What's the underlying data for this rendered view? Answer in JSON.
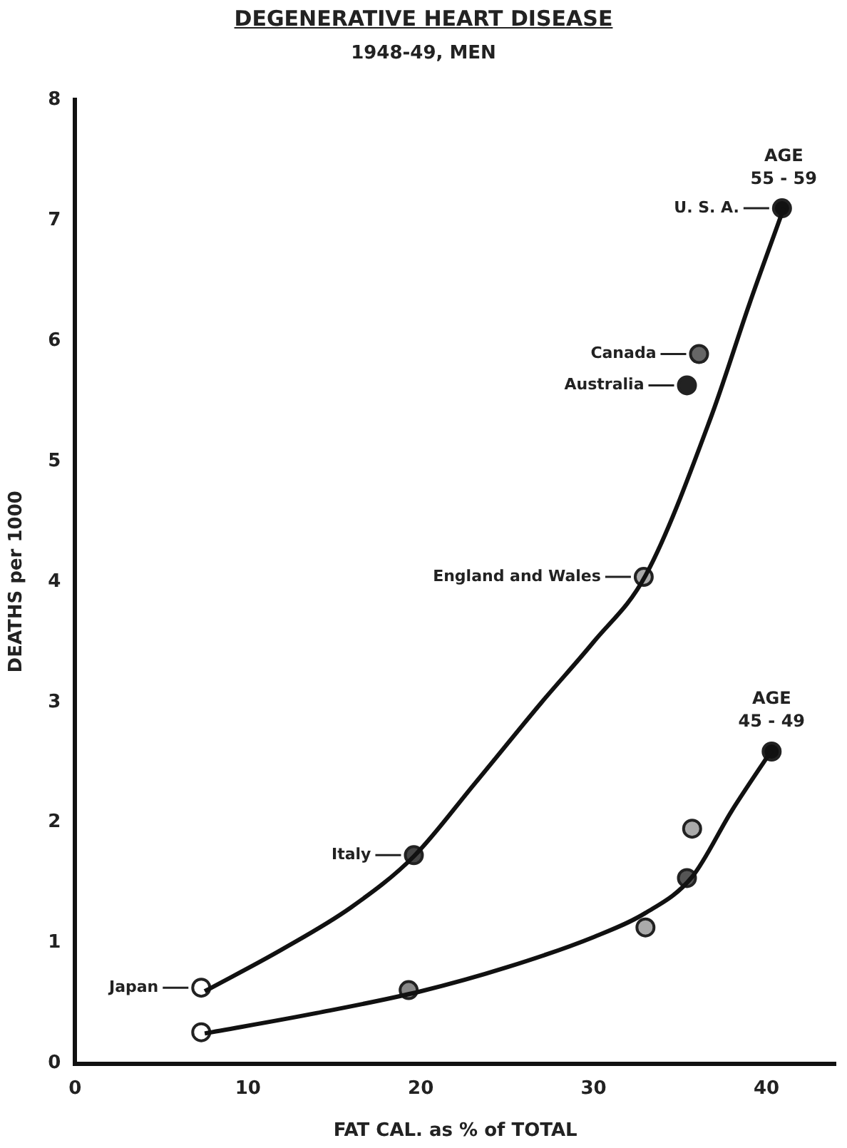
{
  "chart_data": {
    "type": "scatter",
    "title": "DEGENERATIVE HEART DISEASE",
    "subtitle": "1948-49, MEN",
    "xlabel": "FAT CAL. as % of TOTAL",
    "ylabel": "DEATHS per 1000",
    "xlim": [
      0,
      44
    ],
    "xticks": [
      0,
      10,
      20,
      30,
      40
    ],
    "ylim": [
      0,
      8
    ],
    "yticks": [
      0,
      1,
      2,
      3,
      4,
      5,
      6,
      7,
      8
    ],
    "grid": false,
    "legend": false,
    "marker": "circle",
    "series": [
      {
        "type": "line",
        "name": "AGE 55 - 59",
        "color": "#111111",
        "x": [
          7.5,
          12,
          16,
          19.6,
          23.1,
          27,
          30,
          33,
          36.8,
          39,
          41
        ],
        "values": [
          0.6,
          0.95,
          1.3,
          1.72,
          2.32,
          3.0,
          3.5,
          4.05,
          5.37,
          6.3,
          7.1
        ],
        "marker": "none",
        "line_style": "solid"
      },
      {
        "type": "line",
        "name": "AGE 45 - 49",
        "color": "#111111",
        "x": [
          7.5,
          14,
          20,
          25,
          30,
          33,
          35.7,
          38,
          40.3
        ],
        "values": [
          0.25,
          0.42,
          0.6,
          0.8,
          1.05,
          1.25,
          1.55,
          2.1,
          2.6
        ],
        "marker": "none",
        "line_style": "solid"
      },
      {
        "color": "#222222",
        "colors": [
          "#ffffff",
          "#444444",
          "#aaaaaa",
          "#222222",
          "#666666",
          "#111111"
        ],
        "x": [
          7.3,
          19.6,
          32.9,
          35.4,
          36.1,
          40.9
        ],
        "values": [
          0.63,
          1.73,
          4.04,
          5.63,
          5.89,
          7.1
        ]
      },
      {
        "color": "#222222",
        "colors": [
          "#ffffff",
          "#888888",
          "#aaaaaa",
          "#555555",
          "#aaaaaa",
          "#111111"
        ],
        "x": [
          7.3,
          19.3,
          33.0,
          35.4,
          35.7,
          40.3
        ],
        "values": [
          0.26,
          0.61,
          1.13,
          1.54,
          1.95,
          2.59
        ]
      }
    ],
    "annotations": [
      {
        "text": "Japan",
        "x": 7.3,
        "y": 0.63
      },
      {
        "text": "Italy",
        "x": 19.6,
        "y": 1.73
      },
      {
        "text": "England and Wales",
        "x": 32.9,
        "y": 4.04
      },
      {
        "text": "Australia",
        "x": 35.4,
        "y": 5.63
      },
      {
        "text": "Canada",
        "x": 36.1,
        "y": 5.89
      },
      {
        "text": "U. S. A.",
        "x": 40.9,
        "y": 7.1
      }
    ]
  }
}
